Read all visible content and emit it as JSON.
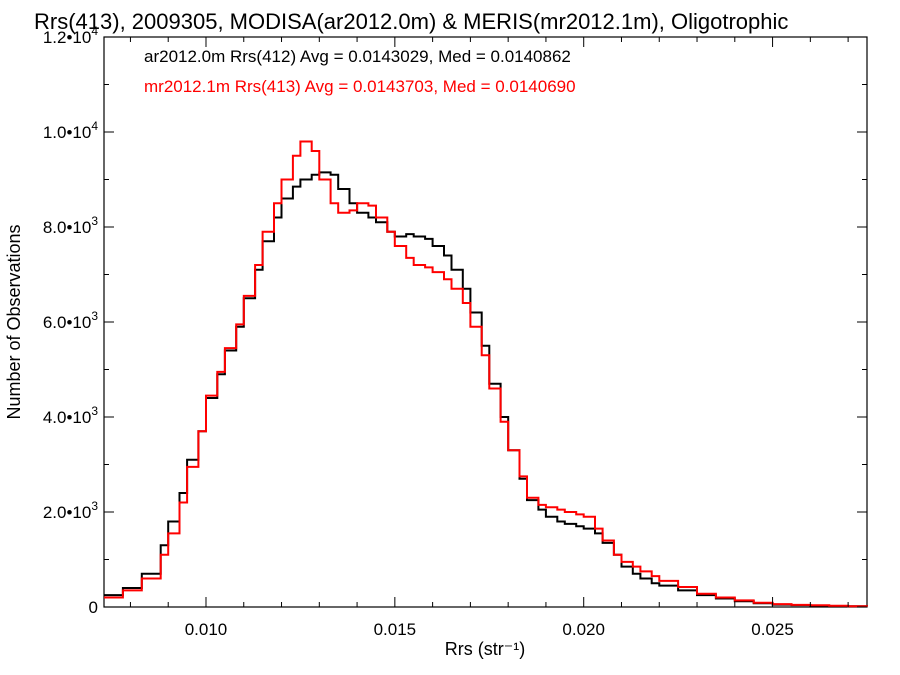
{
  "chart_data": {
    "type": "line",
    "title": "Rrs(413), 2009305, MODISA(ar2012.0m) & MERIS(mr2012.1m), Oligotrophic",
    "xlabel": "Rrs (str⁻¹)",
    "ylabel": "Number of Observations",
    "xlim": [
      0.0073,
      0.0275
    ],
    "ylim": [
      0,
      12000
    ],
    "x_ticks": [
      0.01,
      0.015,
      0.02,
      0.025
    ],
    "x_tick_labels": [
      "0.010",
      "0.015",
      "0.020",
      "0.025"
    ],
    "y_ticks": [
      {
        "value": 0,
        "mantissa": "0",
        "exp": ""
      },
      {
        "value": 2000,
        "mantissa": "2.0•10",
        "exp": "3"
      },
      {
        "value": 4000,
        "mantissa": "4.0•10",
        "exp": "3"
      },
      {
        "value": 6000,
        "mantissa": "6.0•10",
        "exp": "3"
      },
      {
        "value": 8000,
        "mantissa": "8.0•10",
        "exp": "3"
      },
      {
        "value": 10000,
        "mantissa": "1.0•10",
        "exp": "4"
      },
      {
        "value": 12000,
        "mantissa": "1.2•10",
        "exp": "4"
      }
    ],
    "grid": false,
    "legend_placement": "top-left",
    "legend": [
      "ar2012.0m Rrs(412) Avg = 0.0143029, Med = 0.0140862",
      "mr2012.1m Rrs(413) Avg = 0.0143703, Med = 0.0140690"
    ],
    "series": [
      {
        "color": "#000000",
        "x": [
          0.0073,
          0.0078,
          0.0083,
          0.0088,
          0.009,
          0.0093,
          0.0095,
          0.0098,
          0.01,
          0.0103,
          0.0105,
          0.0108,
          0.011,
          0.0113,
          0.0115,
          0.0118,
          0.012,
          0.0123,
          0.0125,
          0.0128,
          0.013,
          0.0133,
          0.0135,
          0.0138,
          0.014,
          0.0143,
          0.0145,
          0.0148,
          0.015,
          0.0153,
          0.0155,
          0.0158,
          0.016,
          0.0163,
          0.0165,
          0.0168,
          0.017,
          0.0173,
          0.0175,
          0.0178,
          0.018,
          0.0183,
          0.0185,
          0.0188,
          0.019,
          0.0193,
          0.0195,
          0.0198,
          0.02,
          0.0203,
          0.0205,
          0.0208,
          0.021,
          0.0213,
          0.0215,
          0.0218,
          0.022,
          0.0225,
          0.023,
          0.0235,
          0.024,
          0.0245,
          0.025,
          0.0255,
          0.026,
          0.0265,
          0.027,
          0.0275
        ],
        "y": [
          250,
          400,
          700,
          1300,
          1800,
          2400,
          3100,
          3700,
          4400,
          4900,
          5400,
          5900,
          6500,
          7100,
          7700,
          8200,
          8600,
          8850,
          9000,
          9100,
          9150,
          9100,
          8800,
          8500,
          8300,
          8200,
          8100,
          7900,
          7800,
          7850,
          7800,
          7750,
          7600,
          7400,
          7100,
          6700,
          6200,
          5500,
          4700,
          4000,
          3300,
          2700,
          2250,
          2050,
          1900,
          1800,
          1750,
          1700,
          1650,
          1550,
          1350,
          1100,
          850,
          700,
          600,
          500,
          450,
          350,
          250,
          180,
          120,
          80,
          50,
          40,
          30,
          20,
          15,
          10
        ]
      },
      {
        "color": "#ff0000",
        "x": [
          0.0073,
          0.0078,
          0.0083,
          0.0088,
          0.009,
          0.0093,
          0.0095,
          0.0098,
          0.01,
          0.0103,
          0.0105,
          0.0108,
          0.011,
          0.0113,
          0.0115,
          0.0118,
          0.012,
          0.0123,
          0.0125,
          0.0128,
          0.013,
          0.0133,
          0.0135,
          0.0138,
          0.014,
          0.0143,
          0.0145,
          0.0148,
          0.015,
          0.0153,
          0.0155,
          0.0158,
          0.016,
          0.0163,
          0.0165,
          0.0168,
          0.017,
          0.0173,
          0.0175,
          0.0178,
          0.018,
          0.0183,
          0.0185,
          0.0188,
          0.019,
          0.0193,
          0.0195,
          0.0198,
          0.02,
          0.0203,
          0.0205,
          0.0208,
          0.021,
          0.0213,
          0.0215,
          0.0218,
          0.022,
          0.0225,
          0.023,
          0.0235,
          0.024,
          0.0245,
          0.025,
          0.0255,
          0.026,
          0.0265,
          0.027,
          0.0275
        ],
        "y": [
          200,
          350,
          600,
          1100,
          1550,
          2200,
          2950,
          3700,
          4450,
          4950,
          5450,
          5950,
          6550,
          7200,
          7900,
          8500,
          9000,
          9500,
          9800,
          9600,
          9000,
          8500,
          8300,
          8350,
          8500,
          8450,
          8200,
          7900,
          7600,
          7350,
          7200,
          7150,
          7050,
          6900,
          6700,
          6400,
          5900,
          5300,
          4600,
          3900,
          3300,
          2750,
          2300,
          2150,
          2100,
          2050,
          2000,
          1950,
          1900,
          1650,
          1400,
          1100,
          950,
          850,
          750,
          650,
          550,
          420,
          280,
          200,
          140,
          90,
          60,
          45,
          35,
          25,
          15,
          10
        ]
      }
    ]
  }
}
